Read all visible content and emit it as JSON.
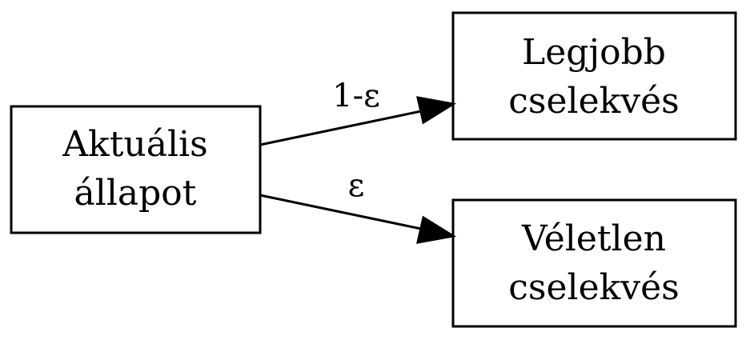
{
  "nodes": {
    "current_state": {
      "line1": "Aktuális",
      "line2": "állapot"
    },
    "best_action": {
      "line1": "Legjobb",
      "line2": "cselekvés"
    },
    "random_action": {
      "line1": "Véletlen",
      "line2": "cselekvés"
    }
  },
  "edges": {
    "to_best": {
      "label": "1-ε"
    },
    "to_random": {
      "label": "ε"
    }
  },
  "colors": {
    "stroke": "#000000",
    "background": "#ffffff"
  }
}
